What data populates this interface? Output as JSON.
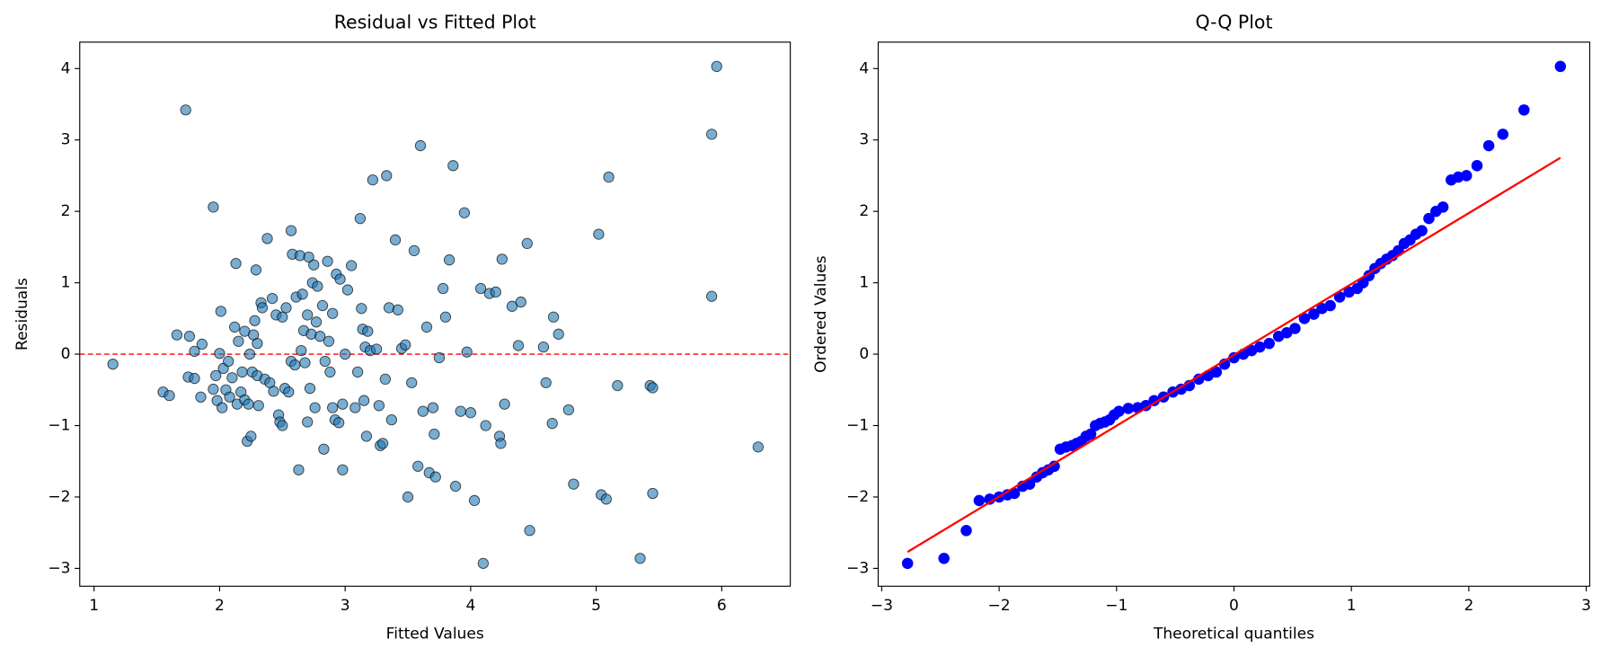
{
  "chart_data": [
    {
      "type": "scatter",
      "title": "Residual vs Fitted Plot",
      "xlabel": "Fitted Values",
      "ylabel": "Residuals",
      "xlim": [
        0.886,
        6.546
      ],
      "ylim": [
        -3.25,
        4.37
      ],
      "xticks": [
        1,
        2,
        3,
        4,
        5,
        6
      ],
      "yticks": [
        {
          "value": -3,
          "label": "−3"
        },
        {
          "value": -2,
          "label": "−2"
        },
        {
          "value": -1,
          "label": "−1"
        },
        0,
        1,
        2,
        3,
        4
      ],
      "hline": {
        "y": 0,
        "color": "red"
      },
      "series": [
        {
          "marker": "point",
          "color": "#1f77b4",
          "x": [
            1.15,
            1.55,
            1.6,
            1.66,
            1.73,
            1.75,
            1.76,
            1.8,
            1.8,
            1.85,
            1.86,
            1.95,
            1.95,
            1.97,
            1.98,
            2.0,
            2.01,
            2.02,
            2.03,
            2.05,
            2.07,
            2.08,
            2.1,
            2.12,
            2.13,
            2.14,
            2.15,
            2.17,
            2.18,
            2.2,
            2.2,
            2.22,
            2.23,
            2.24,
            2.25,
            2.26,
            2.27,
            2.28,
            2.29,
            2.3,
            2.3,
            2.31,
            2.33,
            2.34,
            2.36,
            2.38,
            2.4,
            2.42,
            2.43,
            2.45,
            2.47,
            2.48,
            2.5,
            2.5,
            2.52,
            2.53,
            2.55,
            2.57,
            2.57,
            2.58,
            2.6,
            2.61,
            2.63,
            2.64,
            2.65,
            2.66,
            2.67,
            2.68,
            2.7,
            2.7,
            2.71,
            2.72,
            2.73,
            2.74,
            2.75,
            2.76,
            2.77,
            2.78,
            2.8,
            2.82,
            2.83,
            2.84,
            2.86,
            2.87,
            2.88,
            2.9,
            2.9,
            2.92,
            2.93,
            2.95,
            2.96,
            2.98,
            2.98,
            3.0,
            3.02,
            3.05,
            3.08,
            3.1,
            3.12,
            3.13,
            3.14,
            3.15,
            3.16,
            3.17,
            3.18,
            3.2,
            3.22,
            3.25,
            3.27,
            3.28,
            3.3,
            3.32,
            3.33,
            3.35,
            3.37,
            3.4,
            3.42,
            3.45,
            3.48,
            3.5,
            3.53,
            3.55,
            3.58,
            3.6,
            3.62,
            3.65,
            3.67,
            3.7,
            3.71,
            3.72,
            3.75,
            3.78,
            3.8,
            3.83,
            3.86,
            3.88,
            3.92,
            3.95,
            3.97,
            4.0,
            4.03,
            4.08,
            4.1,
            4.12,
            4.15,
            4.2,
            4.23,
            4.24,
            4.25,
            4.27,
            4.33,
            4.38,
            4.4,
            4.45,
            4.47,
            4.58,
            4.6,
            4.65,
            4.66,
            4.7,
            4.78,
            4.82,
            5.02,
            5.04,
            5.08,
            5.1,
            5.17,
            5.35,
            5.43,
            5.45,
            5.45,
            5.92,
            5.92,
            5.96,
            6.29
          ],
          "values": [
            -0.14,
            -0.53,
            -0.58,
            0.27,
            3.42,
            -0.32,
            0.25,
            -0.34,
            0.04,
            -0.6,
            0.14,
            2.06,
            -0.49,
            -0.3,
            -0.65,
            0.01,
            0.6,
            -0.75,
            -0.2,
            -0.5,
            -0.1,
            -0.6,
            -0.33,
            0.38,
            1.27,
            -0.7,
            0.18,
            -0.53,
            -0.25,
            -0.64,
            0.32,
            -1.22,
            -0.7,
            0.0,
            -1.15,
            -0.25,
            0.27,
            0.47,
            1.18,
            -0.3,
            0.15,
            -0.72,
            0.72,
            0.65,
            -0.35,
            1.62,
            -0.4,
            0.78,
            -0.52,
            0.55,
            -0.85,
            -0.95,
            0.52,
            -1.0,
            -0.48,
            0.65,
            -0.53,
            1.73,
            -0.1,
            1.4,
            -0.15,
            0.8,
            -1.62,
            1.38,
            0.05,
            0.84,
            0.33,
            -0.12,
            0.55,
            -0.95,
            1.36,
            -0.48,
            0.28,
            1.0,
            1.25,
            -0.75,
            0.45,
            0.95,
            0.25,
            0.68,
            -1.33,
            -0.1,
            1.3,
            0.18,
            -0.25,
            0.57,
            -0.75,
            -0.92,
            1.12,
            -0.96,
            1.05,
            -1.62,
            -0.7,
            0.0,
            0.9,
            1.24,
            -0.75,
            -0.25,
            1.9,
            0.64,
            0.35,
            -0.65,
            0.1,
            -1.15,
            0.32,
            0.05,
            2.44,
            0.07,
            -0.72,
            -1.28,
            -1.25,
            -0.35,
            2.5,
            0.65,
            -0.92,
            1.6,
            0.62,
            0.08,
            0.13,
            -2.0,
            -0.4,
            1.45,
            -1.57,
            2.92,
            -0.8,
            0.38,
            -1.66,
            -0.75,
            -1.12,
            -1.72,
            -0.05,
            0.92,
            0.52,
            1.32,
            2.64,
            -1.85,
            -0.8,
            1.98,
            0.03,
            -0.82,
            -2.05,
            0.92,
            -2.93,
            -1.0,
            0.85,
            0.87,
            -1.15,
            -1.25,
            1.33,
            -0.7,
            0.67,
            0.12,
            0.73,
            1.55,
            -2.47,
            0.1,
            -0.4,
            -0.97,
            0.52,
            0.28,
            -0.78,
            -1.82,
            1.68,
            -1.97,
            -2.03,
            2.48,
            -0.44,
            -2.86,
            -0.44,
            -0.47,
            -1.95,
            3.08,
            0.81,
            4.03,
            -1.3
          ]
        }
      ]
    },
    {
      "type": "scatter",
      "title": "Q-Q Plot",
      "xlabel": "Theoretical quantiles",
      "ylabel": "Ordered Values",
      "xlim": [
        -3.03,
        3.03
      ],
      "ylim": [
        -3.25,
        4.37
      ],
      "xticks": [
        {
          "value": -3,
          "label": "−3"
        },
        {
          "value": -2,
          "label": "−2"
        },
        {
          "value": -1,
          "label": "−1"
        },
        0,
        1,
        2,
        3
      ],
      "yticks": [
        {
          "value": -3,
          "label": "−3"
        },
        {
          "value": -2,
          "label": "−2"
        },
        {
          "value": -1,
          "label": "−1"
        },
        0,
        1,
        2,
        3,
        4
      ],
      "series": [
        {
          "marker": "point",
          "color": "#0000ff",
          "x": [
            -2.78,
            -2.47,
            -2.28,
            -2.17,
            -2.08,
            -2.0,
            -1.93,
            -1.87,
            -1.8,
            -1.74,
            -1.68,
            -1.63,
            -1.58,
            -1.53,
            -1.48,
            -1.43,
            -1.38,
            -1.34,
            -1.3,
            -1.26,
            -1.22,
            -1.18,
            -1.14,
            -1.1,
            -1.06,
            -1.02,
            -0.98,
            -0.9,
            -0.82,
            -0.75,
            -0.68,
            -0.6,
            -0.52,
            -0.45,
            -0.38,
            -0.3,
            -0.22,
            -0.15,
            -0.08,
            0.0,
            0.08,
            0.15,
            0.22,
            0.3,
            0.38,
            0.45,
            0.52,
            0.6,
            0.68,
            0.75,
            0.82,
            0.9,
            0.98,
            1.05,
            1.1,
            1.15,
            1.2,
            1.25,
            1.3,
            1.35,
            1.4,
            1.45,
            1.5,
            1.55,
            1.6,
            1.66,
            1.72,
            1.78,
            1.85,
            1.91,
            1.98,
            2.07,
            2.17,
            2.29,
            2.47,
            2.78
          ],
          "values": [
            -2.93,
            -2.86,
            -2.47,
            -2.05,
            -2.03,
            -2.0,
            -1.97,
            -1.95,
            -1.85,
            -1.82,
            -1.72,
            -1.66,
            -1.62,
            -1.57,
            -1.33,
            -1.3,
            -1.28,
            -1.25,
            -1.22,
            -1.15,
            -1.12,
            -1.0,
            -0.97,
            -0.95,
            -0.92,
            -0.85,
            -0.8,
            -0.76,
            -0.75,
            -0.72,
            -0.65,
            -0.6,
            -0.53,
            -0.49,
            -0.44,
            -0.35,
            -0.3,
            -0.25,
            -0.14,
            -0.05,
            0.0,
            0.05,
            0.1,
            0.15,
            0.25,
            0.3,
            0.36,
            0.5,
            0.56,
            0.64,
            0.68,
            0.8,
            0.87,
            0.92,
            1.0,
            1.1,
            1.2,
            1.27,
            1.33,
            1.38,
            1.45,
            1.55,
            1.6,
            1.68,
            1.73,
            1.9,
            2.0,
            2.06,
            2.44,
            2.48,
            2.5,
            2.64,
            2.92,
            3.08,
            3.42,
            4.03
          ]
        },
        {
          "marker": "line",
          "color": "#ff0000",
          "x": [
            -2.78,
            2.78
          ],
          "values": [
            -2.77,
            2.75
          ]
        }
      ]
    }
  ]
}
